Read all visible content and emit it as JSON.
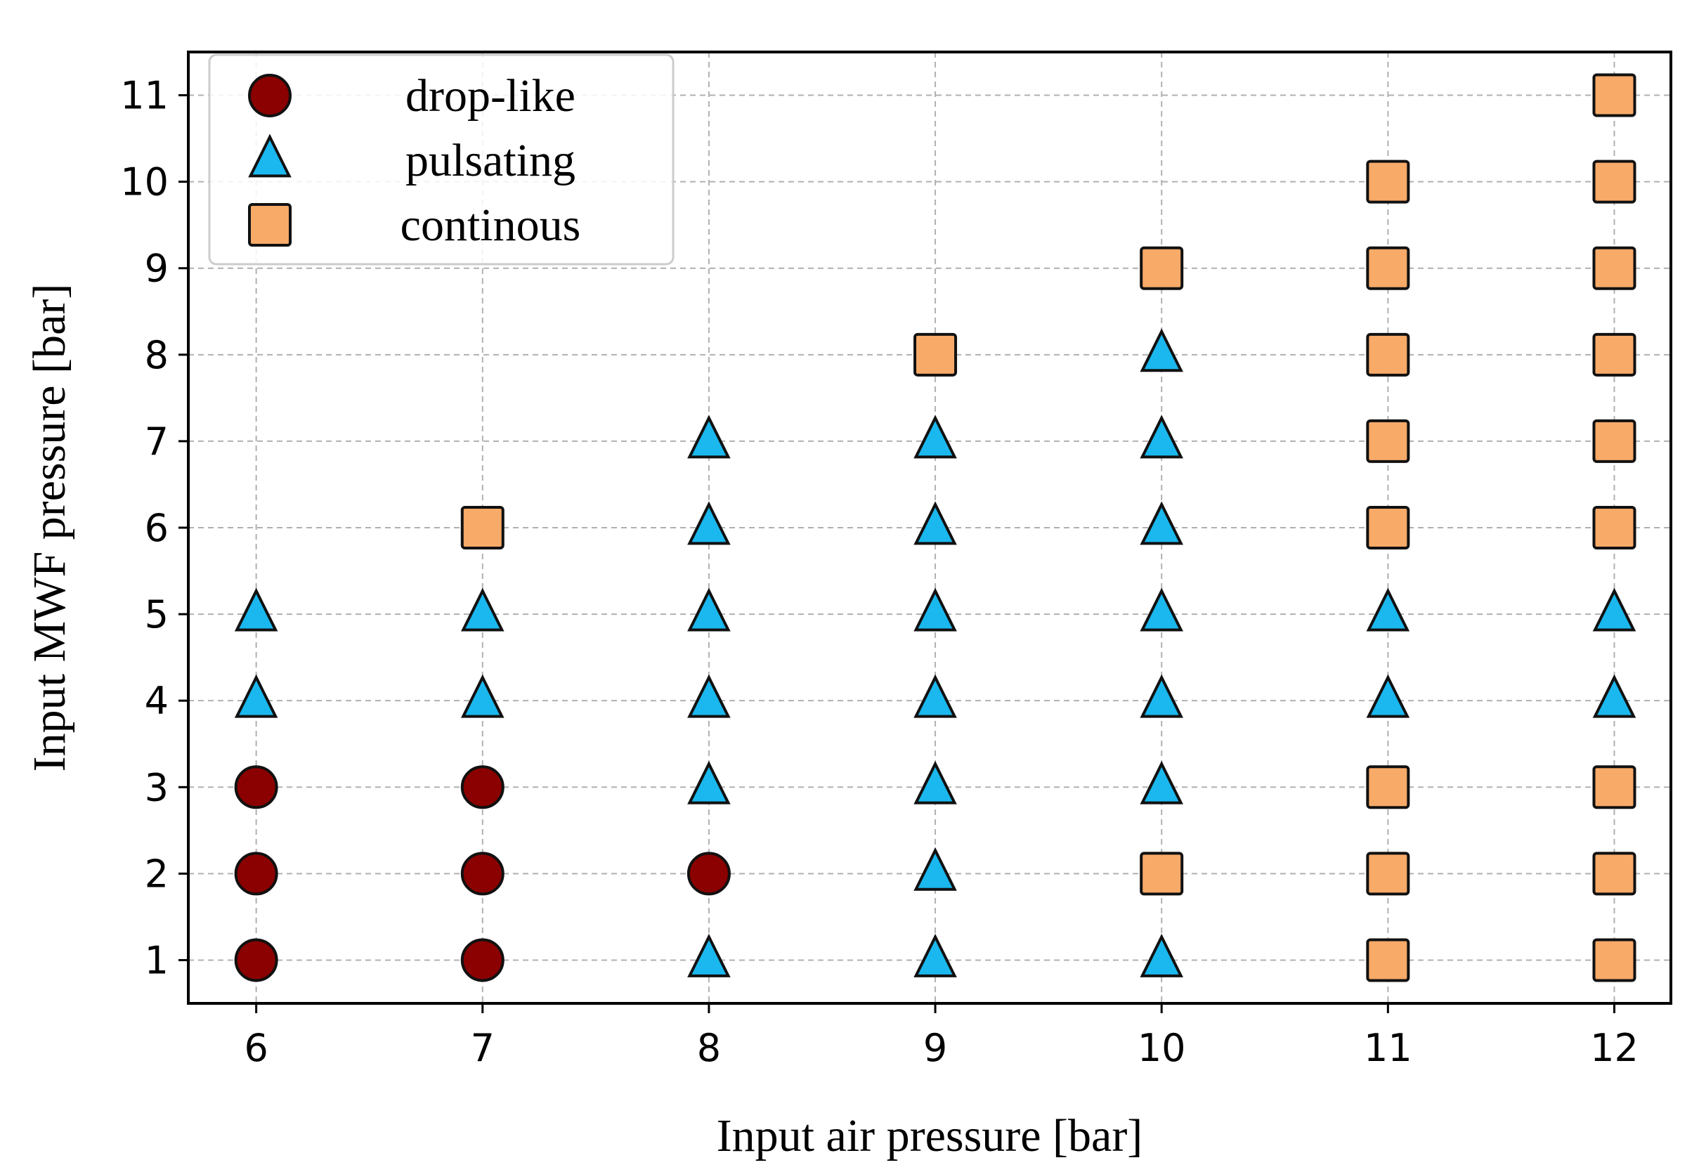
{
  "chart_data": {
    "type": "scatter",
    "title": "",
    "xlabel": "Input air pressure [bar]",
    "ylabel": "Input MWF pressure [bar]",
    "xlim": [
      5.7,
      12.25
    ],
    "ylim": [
      0.5,
      11.5
    ],
    "xticks": [
      6,
      7,
      8,
      9,
      10,
      11,
      12
    ],
    "yticks": [
      1,
      2,
      3,
      4,
      5,
      6,
      7,
      8,
      9,
      10,
      11
    ],
    "grid": true,
    "legend_position": "top-left",
    "series": [
      {
        "name": "drop-like",
        "marker": "circle",
        "color": "#8b0000",
        "points": [
          [
            6,
            1
          ],
          [
            6,
            2
          ],
          [
            6,
            3
          ],
          [
            7,
            1
          ],
          [
            7,
            2
          ],
          [
            7,
            3
          ],
          [
            8,
            2
          ]
        ]
      },
      {
        "name": "pulsating",
        "marker": "triangle",
        "color": "#1ab8ee",
        "points": [
          [
            6,
            4
          ],
          [
            6,
            5
          ],
          [
            7,
            4
          ],
          [
            7,
            5
          ],
          [
            8,
            1
          ],
          [
            8,
            3
          ],
          [
            8,
            4
          ],
          [
            8,
            5
          ],
          [
            8,
            6
          ],
          [
            8,
            7
          ],
          [
            9,
            1
          ],
          [
            9,
            2
          ],
          [
            9,
            3
          ],
          [
            9,
            4
          ],
          [
            9,
            5
          ],
          [
            9,
            6
          ],
          [
            9,
            7
          ],
          [
            10,
            1
          ],
          [
            10,
            3
          ],
          [
            10,
            4
          ],
          [
            10,
            5
          ],
          [
            10,
            6
          ],
          [
            10,
            7
          ],
          [
            10,
            8
          ],
          [
            11,
            4
          ],
          [
            11,
            5
          ],
          [
            12,
            4
          ],
          [
            12,
            5
          ]
        ]
      },
      {
        "name": "continous",
        "marker": "square",
        "color": "#f8aa68",
        "points": [
          [
            7,
            6
          ],
          [
            9,
            8
          ],
          [
            10,
            2
          ],
          [
            10,
            9
          ],
          [
            11,
            1
          ],
          [
            11,
            2
          ],
          [
            11,
            3
          ],
          [
            11,
            6
          ],
          [
            11,
            7
          ],
          [
            11,
            8
          ],
          [
            11,
            9
          ],
          [
            11,
            10
          ],
          [
            12,
            1
          ],
          [
            12,
            2
          ],
          [
            12,
            3
          ],
          [
            12,
            6
          ],
          [
            12,
            7
          ],
          [
            12,
            8
          ],
          [
            12,
            9
          ],
          [
            12,
            10
          ],
          [
            12,
            11
          ]
        ]
      }
    ]
  }
}
